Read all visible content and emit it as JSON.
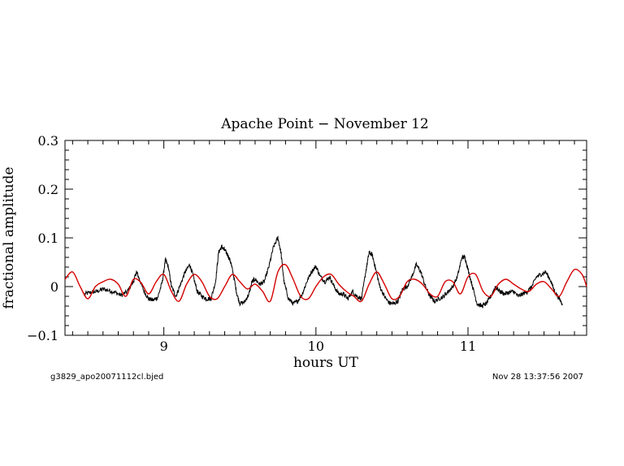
{
  "chart_data": {
    "type": "line",
    "title": "Apache Point − November 12",
    "xlabel": "hours UT",
    "ylabel": "fractional amplitude",
    "xlim": [
      8.35,
      11.78
    ],
    "ylim": [
      -0.1,
      0.3
    ],
    "x_ticks": [
      9,
      10,
      11
    ],
    "x_tick_labels": [
      "9",
      "10",
      "11"
    ],
    "y_ticks": [
      -0.1,
      0,
      0.1,
      0.2,
      0.3
    ],
    "y_tick_labels": [
      "−0.1",
      "0",
      "0.1",
      "0.2",
      "0.3"
    ],
    "grid": false,
    "legend": "none",
    "series": [
      {
        "color": "#000000",
        "style": "noisy-line",
        "x": [
          8.48,
          8.52,
          8.56,
          8.6,
          8.64,
          8.68,
          8.72,
          8.76,
          8.8,
          8.82,
          8.84,
          8.87,
          8.9,
          8.93,
          8.96,
          8.99,
          9.01,
          9.03,
          9.05,
          9.08,
          9.11,
          9.14,
          9.17,
          9.19,
          9.22,
          9.25,
          9.28,
          9.31,
          9.34,
          9.36,
          9.38,
          9.4,
          9.42,
          9.44,
          9.46,
          9.48,
          9.5,
          9.53,
          9.56,
          9.58,
          9.6,
          9.63,
          9.66,
          9.69,
          9.72,
          9.75,
          9.77,
          9.79,
          9.82,
          9.85,
          9.88,
          9.91,
          9.94,
          9.97,
          10.0,
          10.03,
          10.06,
          10.09,
          10.12,
          10.15,
          10.18,
          10.21,
          10.24,
          10.27,
          10.3,
          10.33,
          10.35,
          10.37,
          10.39,
          10.42,
          10.45,
          10.48,
          10.51,
          10.54,
          10.57,
          10.6,
          10.63,
          10.66,
          10.69,
          10.72,
          10.75,
          10.78,
          10.81,
          10.84,
          10.87,
          10.9,
          10.93,
          10.96,
          10.98,
          11.0,
          11.03,
          11.06,
          11.09,
          11.12,
          11.15,
          11.18,
          11.21,
          11.24,
          11.27,
          11.3,
          11.33,
          11.36,
          11.39,
          11.42,
          11.45,
          11.48,
          11.51,
          11.54,
          11.57,
          11.6,
          11.62
        ],
        "y": [
          -0.015,
          -0.012,
          -0.01,
          -0.005,
          -0.008,
          -0.012,
          -0.018,
          -0.01,
          0.01,
          0.03,
          0.015,
          -0.01,
          -0.025,
          -0.028,
          -0.022,
          0.01,
          0.055,
          0.04,
          0.0,
          -0.02,
          0.005,
          0.03,
          0.045,
          0.025,
          -0.01,
          -0.02,
          -0.025,
          -0.025,
          0.01,
          0.07,
          0.082,
          0.075,
          0.065,
          0.05,
          0.02,
          -0.015,
          -0.035,
          -0.032,
          -0.015,
          0.01,
          0.015,
          0.005,
          0.01,
          0.04,
          0.08,
          0.1,
          0.07,
          0.01,
          -0.025,
          -0.035,
          -0.03,
          -0.015,
          0.01,
          0.03,
          0.042,
          0.02,
          0.01,
          0.02,
          0.0,
          -0.015,
          -0.015,
          -0.025,
          -0.01,
          -0.02,
          -0.025,
          0.035,
          0.07,
          0.065,
          0.04,
          0.0,
          -0.02,
          -0.033,
          -0.035,
          -0.03,
          -0.005,
          0.0,
          0.02,
          0.045,
          0.03,
          0.0,
          -0.02,
          -0.03,
          -0.025,
          -0.02,
          -0.01,
          0.0,
          0.02,
          0.06,
          0.06,
          0.035,
          0.0,
          -0.035,
          -0.04,
          -0.035,
          -0.02,
          0.0,
          -0.01,
          -0.015,
          -0.012,
          -0.01,
          -0.02,
          -0.015,
          -0.01,
          0.0,
          0.02,
          0.025,
          0.03,
          0.015,
          -0.01,
          -0.025,
          -0.035
        ]
      },
      {
        "color": "#d40000",
        "style": "smooth-line",
        "x": [
          8.35,
          8.4,
          8.45,
          8.5,
          8.55,
          8.6,
          8.65,
          8.7,
          8.75,
          8.8,
          8.85,
          8.9,
          8.95,
          9.0,
          9.05,
          9.1,
          9.15,
          9.2,
          9.25,
          9.3,
          9.35,
          9.4,
          9.45,
          9.5,
          9.55,
          9.6,
          9.65,
          9.7,
          9.75,
          9.8,
          9.85,
          9.9,
          9.95,
          10.0,
          10.05,
          10.1,
          10.15,
          10.2,
          10.25,
          10.3,
          10.35,
          10.4,
          10.45,
          10.5,
          10.55,
          10.6,
          10.65,
          10.7,
          10.75,
          10.8,
          10.85,
          10.9,
          10.95,
          11.0,
          11.05,
          11.1,
          11.15,
          11.2,
          11.25,
          11.3,
          11.35,
          11.4,
          11.45,
          11.5,
          11.55,
          11.6,
          11.65,
          11.7,
          11.75,
          11.78
        ],
        "y": [
          0.015,
          0.03,
          0.0,
          -0.025,
          0.0,
          0.01,
          0.015,
          0.005,
          -0.02,
          0.015,
          0.008,
          -0.015,
          0.01,
          0.025,
          -0.01,
          -0.03,
          0.005,
          0.025,
          0.01,
          -0.02,
          -0.025,
          0.0,
          0.025,
          0.01,
          -0.005,
          0.005,
          -0.01,
          -0.03,
          0.03,
          0.045,
          0.015,
          -0.02,
          -0.025,
          0.0,
          0.02,
          0.025,
          0.005,
          -0.01,
          -0.02,
          -0.03,
          0.005,
          0.03,
          0.005,
          -0.025,
          -0.02,
          0.01,
          0.015,
          0.005,
          -0.015,
          -0.02,
          0.01,
          0.01,
          -0.015,
          0.02,
          0.025,
          -0.01,
          -0.02,
          0.005,
          0.015,
          0.005,
          -0.005,
          -0.01,
          0.005,
          0.01,
          -0.005,
          -0.02,
          0.01,
          0.035,
          0.025,
          0.0
        ]
      }
    ]
  },
  "footer": {
    "filename": "g3829_apo20071112cl.bjed",
    "timestamp": "Nov 28 13:37:56 2007"
  }
}
